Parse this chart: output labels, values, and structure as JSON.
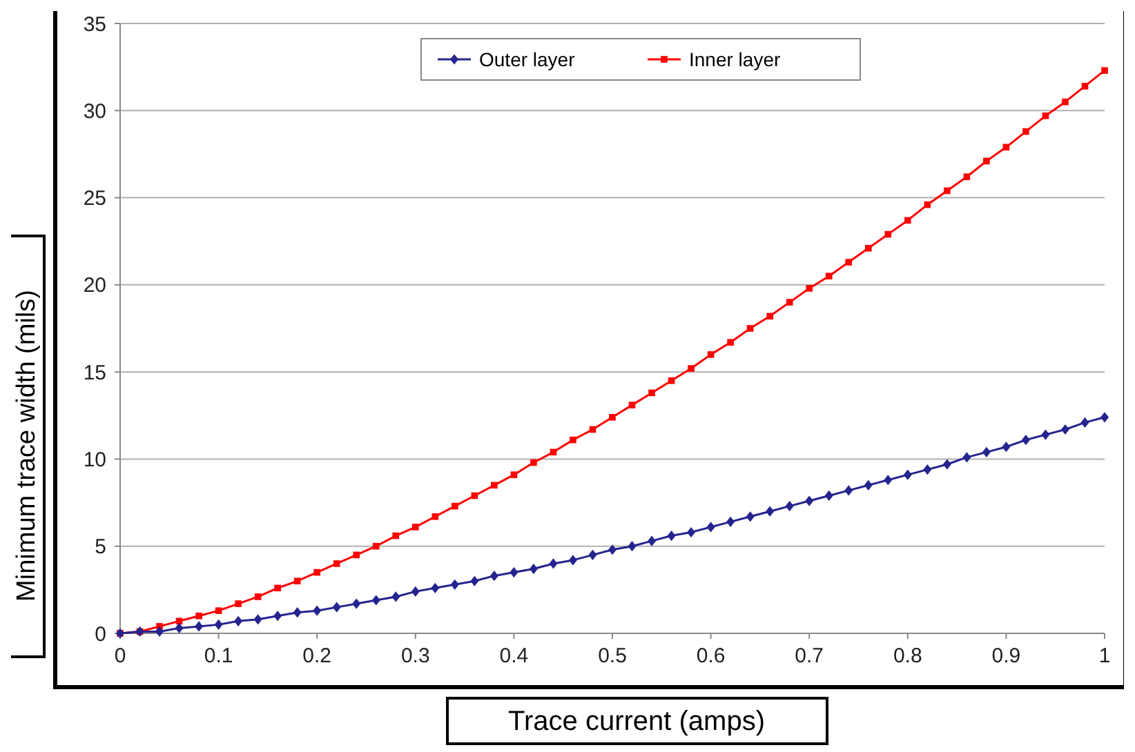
{
  "chart_data": {
    "type": "line",
    "xlabel": "Trace current (amps)",
    "ylabel": "Minimum trace width (mils)",
    "x": [
      0,
      0.02,
      0.04,
      0.06,
      0.08,
      0.1,
      0.12,
      0.14,
      0.16,
      0.18,
      0.2,
      0.22,
      0.24,
      0.26,
      0.28,
      0.3,
      0.32,
      0.34,
      0.36,
      0.38,
      0.4,
      0.42,
      0.44,
      0.46,
      0.48,
      0.5,
      0.52,
      0.54,
      0.56,
      0.58,
      0.6,
      0.62,
      0.64,
      0.66,
      0.68,
      0.7,
      0.72,
      0.74,
      0.76,
      0.78,
      0.8,
      0.82,
      0.84,
      0.86,
      0.88,
      0.9,
      0.92,
      0.94,
      0.96,
      0.98,
      1
    ],
    "series": [
      {
        "name": "Outer layer",
        "color": "#24248f",
        "marker": "diamond",
        "values": [
          0,
          0.1,
          0.1,
          0.3,
          0.4,
          0.5,
          0.7,
          0.8,
          1.0,
          1.2,
          1.3,
          1.5,
          1.7,
          1.9,
          2.1,
          2.4,
          2.6,
          2.8,
          3.0,
          3.3,
          3.5,
          3.7,
          4.0,
          4.2,
          4.5,
          4.8,
          5.0,
          5.3,
          5.6,
          5.8,
          6.1,
          6.4,
          6.7,
          7.0,
          7.3,
          7.6,
          7.9,
          8.2,
          8.5,
          8.8,
          9.1,
          9.4,
          9.7,
          10.1,
          10.4,
          10.7,
          11.1,
          11.4,
          11.7,
          12.1,
          12.4
        ]
      },
      {
        "name": "Inner layer",
        "color": "#ff0000",
        "marker": "square",
        "values": [
          0,
          0.1,
          0.4,
          0.7,
          1.0,
          1.3,
          1.7,
          2.1,
          2.6,
          3.0,
          3.5,
          4.0,
          4.5,
          5.0,
          5.6,
          6.1,
          6.7,
          7.3,
          7.9,
          8.5,
          9.1,
          9.8,
          10.4,
          11.1,
          11.7,
          12.4,
          13.1,
          13.8,
          14.5,
          15.2,
          16.0,
          16.7,
          17.5,
          18.2,
          19.0,
          19.8,
          20.5,
          21.3,
          22.1,
          22.9,
          23.7,
          24.6,
          25.4,
          26.2,
          27.1,
          27.9,
          28.8,
          29.7,
          30.5,
          31.4,
          32.3
        ]
      }
    ],
    "xlim": [
      0,
      1
    ],
    "xticks": [
      0,
      0.1,
      0.2,
      0.3,
      0.4,
      0.5,
      0.6,
      0.7,
      0.8,
      0.9,
      1
    ],
    "ylim": [
      0,
      35
    ],
    "yticks": [
      0,
      5,
      10,
      15,
      20,
      25,
      30,
      35
    ],
    "grid": "y",
    "legend": "top",
    "line_style": "solid"
  }
}
